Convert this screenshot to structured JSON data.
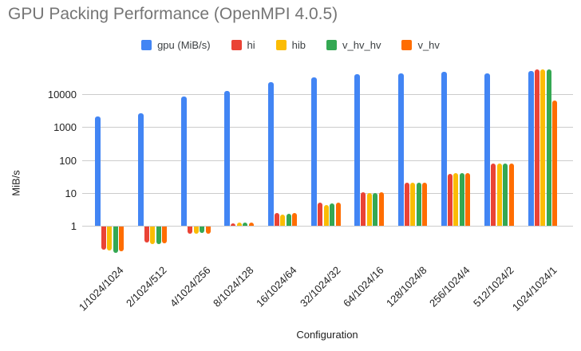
{
  "title": "GPU Packing Performance (OpenMPI 4.0.5)",
  "axes": {
    "x_title": "Configuration",
    "y_title": "MiB/s"
  },
  "chart_data": {
    "type": "bar",
    "title": "GPU Packing Performance (OpenMPI 4.0.5)",
    "xlabel": "Configuration",
    "ylabel": "MiB/s",
    "y_scale": "log",
    "yticks": [
      1,
      10,
      100,
      1000,
      10000
    ],
    "ylim": [
      0.13,
      64000
    ],
    "grid": true,
    "legend_position": "top",
    "categories": [
      "1/1024/1024",
      "2/1024/512",
      "4/1024/256",
      "8/1024/128",
      "16/1024/64",
      "32/1024/32",
      "64/1024/16",
      "128/1024/8",
      "256/1024/4",
      "512/1024/2",
      "1024/1024/1"
    ],
    "series": [
      {
        "name": "gpu (MiB/s)",
        "color": "#4285F4",
        "values": [
          2100,
          2600,
          8500,
          12500,
          23000,
          33000,
          42000,
          43000,
          48000,
          43000,
          51000
        ]
      },
      {
        "name": "hi",
        "color": "#EA4335",
        "values": [
          0.2,
          0.33,
          0.62,
          1.2,
          2.45,
          5.0,
          10.5,
          20,
          38,
          78,
          56000
        ]
      },
      {
        "name": "hib",
        "color": "#FBBC04",
        "values": [
          0.19,
          0.3,
          0.6,
          1.25,
          2.2,
          4.4,
          10,
          21,
          40,
          78,
          56000
        ]
      },
      {
        "name": "v_hv_hv",
        "color": "#34A853",
        "values": [
          0.16,
          0.29,
          0.63,
          1.25,
          2.3,
          4.8,
          10,
          20,
          40,
          79,
          57000
        ]
      },
      {
        "name": "v_hv",
        "color": "#FF6D01",
        "values": [
          0.18,
          0.31,
          0.6,
          1.25,
          2.45,
          5.0,
          10.5,
          20,
          40,
          79,
          6400
        ]
      }
    ]
  }
}
